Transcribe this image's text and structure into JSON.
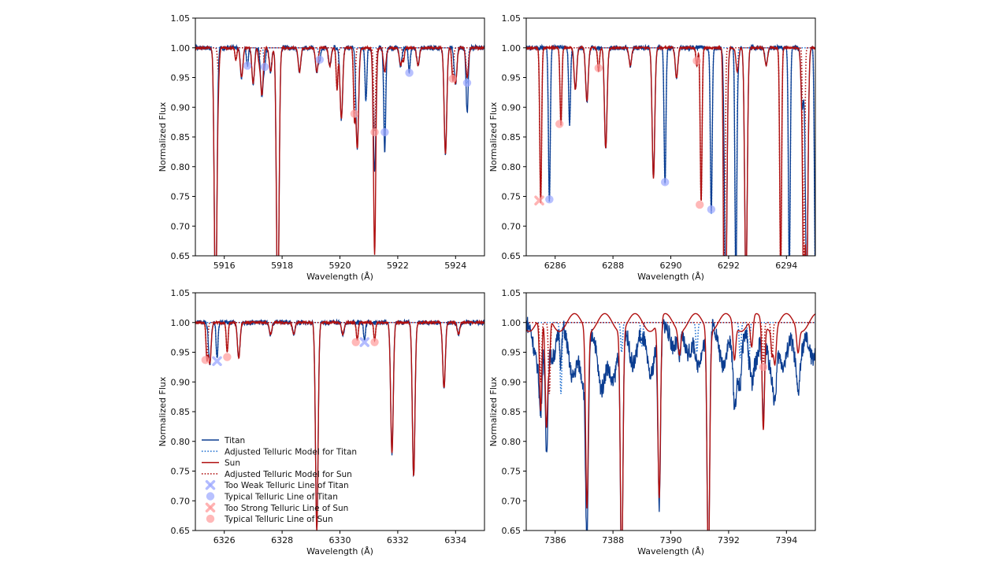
{
  "figure": {
    "colors": {
      "titan": "#0b3d91",
      "titan_model": "#1f6fd0",
      "sun": "#b01010",
      "sun_model": "#b01010",
      "titan_marker": "#9aa6ff",
      "sun_marker": "#ff9a9a"
    }
  },
  "legend": {
    "items": [
      {
        "label": "Titan",
        "style": "titan-line"
      },
      {
        "label": "Adjusted Telluric Model for Titan",
        "style": "titan-dotted"
      },
      {
        "label": "Sun",
        "style": "sun-line"
      },
      {
        "label": "Adjusted Telluric Model for Sun",
        "style": "sun-dotted"
      },
      {
        "label": "Too Weak Telluric Line of Titan",
        "style": "titan-x"
      },
      {
        "label": "Typical Telluric Line of Titan",
        "style": "titan-circle"
      },
      {
        "label": "Too Strong Telluric Line of Sun",
        "style": "sun-x"
      },
      {
        "label": "Typical Telluric Line of Sun",
        "style": "sun-circle"
      }
    ]
  },
  "chart_data": [
    {
      "type": "line",
      "xlabel": "Wavelength (Å)",
      "ylabel": "Normalized Flux",
      "xlim": [
        5915,
        5925
      ],
      "ylim": [
        0.65,
        1.05
      ],
      "xticks": [
        5916,
        5918,
        5920,
        5922,
        5924
      ],
      "yticks": [
        0.65,
        0.7,
        0.75,
        0.8,
        0.85,
        0.9,
        0.95,
        1.0,
        1.05
      ],
      "grid": false,
      "solar_lines": [
        [
          5915.7,
          0.45
        ],
        [
          5916.6,
          0.05
        ],
        [
          5917.0,
          0.06
        ],
        [
          5917.3,
          0.08
        ],
        [
          5917.6,
          0.04
        ],
        [
          5917.85,
          0.45
        ],
        [
          5918.6,
          0.04
        ],
        [
          5919.2,
          0.04
        ],
        [
          5919.65,
          0.03
        ],
        [
          5920.05,
          0.12
        ],
        [
          5920.6,
          0.17
        ],
        [
          5921.2,
          0.21
        ],
        [
          5921.55,
          0.04
        ],
        [
          5922.1,
          0.03
        ],
        [
          5922.7,
          0.03
        ],
        [
          5923.65,
          0.18
        ],
        [
          5924.0,
          0.06
        ],
        [
          5924.4,
          0.05
        ]
      ],
      "titan_telluric": [
        [
          5916.8,
          0.03
        ],
        [
          5917.4,
          0.03
        ],
        [
          5919.3,
          0.02
        ],
        [
          5920.9,
          0.09
        ],
        [
          5921.55,
          0.14
        ],
        [
          5922.4,
          0.04
        ],
        [
          5924.4,
          0.06
        ]
      ],
      "sun_telluric": [
        [
          5915.8,
          0.04
        ],
        [
          5916.4,
          0.02
        ],
        [
          5917.2,
          0.02
        ],
        [
          5919.9,
          0.07
        ],
        [
          5920.5,
          0.11
        ],
        [
          5921.2,
          0.14
        ],
        [
          5922.2,
          0.02
        ],
        [
          5923.9,
          0.05
        ]
      ],
      "titan_markers": [
        {
          "x": 5916.8,
          "y": 0.97,
          "kind": "typical"
        },
        {
          "x": 5917.4,
          "y": 0.968,
          "kind": "typical"
        },
        {
          "x": 5919.3,
          "y": 0.98,
          "kind": "typical"
        },
        {
          "x": 5921.55,
          "y": 0.858,
          "kind": "typical"
        },
        {
          "x": 5922.4,
          "y": 0.958,
          "kind": "typical"
        },
        {
          "x": 5924.4,
          "y": 0.941,
          "kind": "typical"
        }
      ],
      "sun_markers": [
        {
          "x": 5920.5,
          "y": 0.889,
          "kind": "typical"
        },
        {
          "x": 5921.2,
          "y": 0.858,
          "kind": "typical"
        },
        {
          "x": 5923.9,
          "y": 0.948,
          "kind": "typical"
        }
      ]
    },
    {
      "type": "line",
      "xlabel": "Wavelength (Å)",
      "ylabel": "Normalized Flux",
      "xlim": [
        6285,
        6295
      ],
      "ylim": [
        0.65,
        1.05
      ],
      "xticks": [
        6286,
        6288,
        6290,
        6292,
        6294
      ],
      "yticks": [
        0.65,
        0.7,
        0.75,
        0.8,
        0.85,
        0.9,
        0.95,
        1.0,
        1.05
      ],
      "grid": false,
      "solar_lines": [
        [
          6286.7,
          0.07
        ],
        [
          6287.1,
          0.09
        ],
        [
          6287.75,
          0.17
        ],
        [
          6288.6,
          0.03
        ],
        [
          6289.4,
          0.22
        ],
        [
          6290.2,
          0.05
        ],
        [
          6291.9,
          0.4
        ],
        [
          6292.3,
          0.04
        ],
        [
          6292.6,
          0.4
        ],
        [
          6293.3,
          0.03
        ],
        [
          6294.55,
          0.1
        ],
        [
          6294.7,
          0.4
        ]
      ],
      "titan_telluric": [
        [
          6285.8,
          0.26
        ],
        [
          6286.5,
          0.13
        ],
        [
          6289.8,
          0.23
        ],
        [
          6291.4,
          0.28
        ],
        [
          6292.25,
          0.38
        ],
        [
          6294.1,
          0.38
        ],
        [
          6295.0,
          0.38
        ]
      ],
      "sun_telluric": [
        [
          6285.5,
          0.26
        ],
        [
          6286.2,
          0.13
        ],
        [
          6287.5,
          0.04
        ],
        [
          6290.9,
          0.03
        ],
        [
          6291.05,
          0.26
        ],
        [
          6291.85,
          0.38
        ],
        [
          6293.8,
          0.38
        ],
        [
          6294.6,
          0.38
        ]
      ],
      "titan_markers": [
        {
          "x": 6285.8,
          "y": 0.745,
          "kind": "typical"
        },
        {
          "x": 6289.8,
          "y": 0.774,
          "kind": "typical"
        },
        {
          "x": 6291.4,
          "y": 0.728,
          "kind": "typical"
        }
      ],
      "sun_markers": [
        {
          "x": 6285.45,
          "y": 0.743,
          "kind": "too_strong"
        },
        {
          "x": 6286.15,
          "y": 0.872,
          "kind": "typical"
        },
        {
          "x": 6287.5,
          "y": 0.966,
          "kind": "typical"
        },
        {
          "x": 6290.9,
          "y": 0.978,
          "kind": "typical"
        },
        {
          "x": 6291.0,
          "y": 0.736,
          "kind": "typical"
        }
      ]
    },
    {
      "type": "line",
      "xlabel": "Wavelength (Å)",
      "ylabel": "Normalized Flux",
      "xlim": [
        6325,
        6335
      ],
      "ylim": [
        0.65,
        1.05
      ],
      "xticks": [
        6326,
        6328,
        6330,
        6332,
        6334
      ],
      "yticks": [
        0.65,
        0.7,
        0.75,
        0.8,
        0.85,
        0.9,
        0.95,
        1.0,
        1.05
      ],
      "grid": false,
      "solar_lines": [
        [
          6325.5,
          0.07
        ],
        [
          6326.5,
          0.06
        ],
        [
          6327.6,
          0.02
        ],
        [
          6328.4,
          0.02
        ],
        [
          6329.2,
          0.35
        ],
        [
          6330.1,
          0.02
        ],
        [
          6331.8,
          0.22
        ],
        [
          6332.55,
          0.26
        ],
        [
          6333.6,
          0.11
        ],
        [
          6334.1,
          0.02
        ]
      ],
      "titan_telluric": [
        [
          6325.75,
          0.06
        ],
        [
          6330.85,
          0.03
        ]
      ],
      "sun_telluric": [
        [
          6325.4,
          0.06
        ],
        [
          6326.1,
          0.05
        ],
        [
          6330.6,
          0.03
        ],
        [
          6331.2,
          0.03
        ]
      ],
      "titan_markers": [
        {
          "x": 6325.75,
          "y": 0.935,
          "kind": "too_weak"
        },
        {
          "x": 6330.85,
          "y": 0.967,
          "kind": "too_weak"
        }
      ],
      "sun_markers": [
        {
          "x": 6325.35,
          "y": 0.937,
          "kind": "typical"
        },
        {
          "x": 6326.1,
          "y": 0.942,
          "kind": "typical"
        },
        {
          "x": 6330.55,
          "y": 0.967,
          "kind": "typical"
        },
        {
          "x": 6331.2,
          "y": 0.967,
          "kind": "typical"
        }
      ]
    },
    {
      "type": "line",
      "xlabel": "Wavelength (Å)",
      "ylabel": "Normalized Flux",
      "xlim": [
        7385,
        7395
      ],
      "ylim": [
        0.65,
        1.05
      ],
      "xticks": [
        7386,
        7388,
        7390,
        7392,
        7394
      ],
      "yticks": [
        0.65,
        0.7,
        0.75,
        0.8,
        0.85,
        0.9,
        0.95,
        1.0,
        1.05
      ],
      "grid": false,
      "solar_lines": [
        [
          7385.5,
          0.1
        ],
        [
          7385.7,
          0.19
        ],
        [
          7387.1,
          0.3
        ],
        [
          7388.3,
          0.4
        ],
        [
          7389.6,
          0.3
        ],
        [
          7390.3,
          0.04
        ],
        [
          7391.3,
          0.4
        ],
        [
          7392.2,
          0.06
        ],
        [
          7392.8,
          0.05
        ],
        [
          7393.2,
          0.14
        ],
        [
          7393.6,
          0.06
        ],
        [
          7394.4,
          0.04
        ]
      ],
      "titan_telluric": [
        [
          7386.2,
          0.12
        ],
        [
          7388.3,
          0.05
        ],
        [
          7389.0,
          0.04
        ],
        [
          7390.9,
          0.05
        ],
        [
          7392.4,
          0.06
        ],
        [
          7392.7,
          0.07
        ]
      ],
      "sun_telluric": [
        [
          7385.5,
          0.1
        ],
        [
          7385.8,
          0.12
        ],
        [
          7393.2,
          0.07
        ],
        [
          7393.5,
          0.06
        ]
      ],
      "titan_markers": [],
      "sun_markers": [
        {
          "x": 7393.2,
          "y": 0.925,
          "kind": "typical"
        }
      ]
    }
  ]
}
